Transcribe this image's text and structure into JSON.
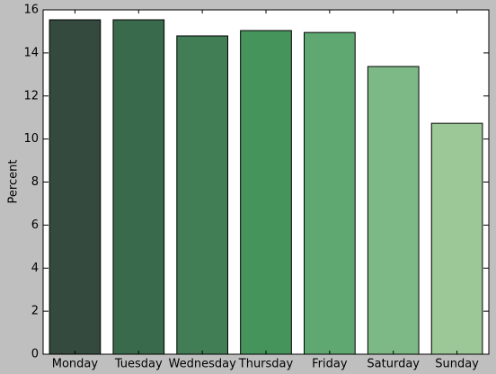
{
  "chart_data": {
    "type": "bar",
    "ylabel": "Percent",
    "categories": [
      "Monday",
      "Tuesday",
      "Wednesday",
      "Thursday",
      "Friday",
      "Saturday",
      "Sunday"
    ],
    "values": [
      15.54,
      15.54,
      14.79,
      15.04,
      14.95,
      13.37,
      10.73
    ],
    "colors": [
      "#344a3e",
      "#3a6a4c",
      "#417d55",
      "#45945c",
      "#60a872",
      "#7db986",
      "#9bc896"
    ],
    "ylim": [
      0,
      16
    ],
    "yticks": [
      0,
      2,
      4,
      6,
      8,
      10,
      12,
      14,
      16
    ]
  }
}
